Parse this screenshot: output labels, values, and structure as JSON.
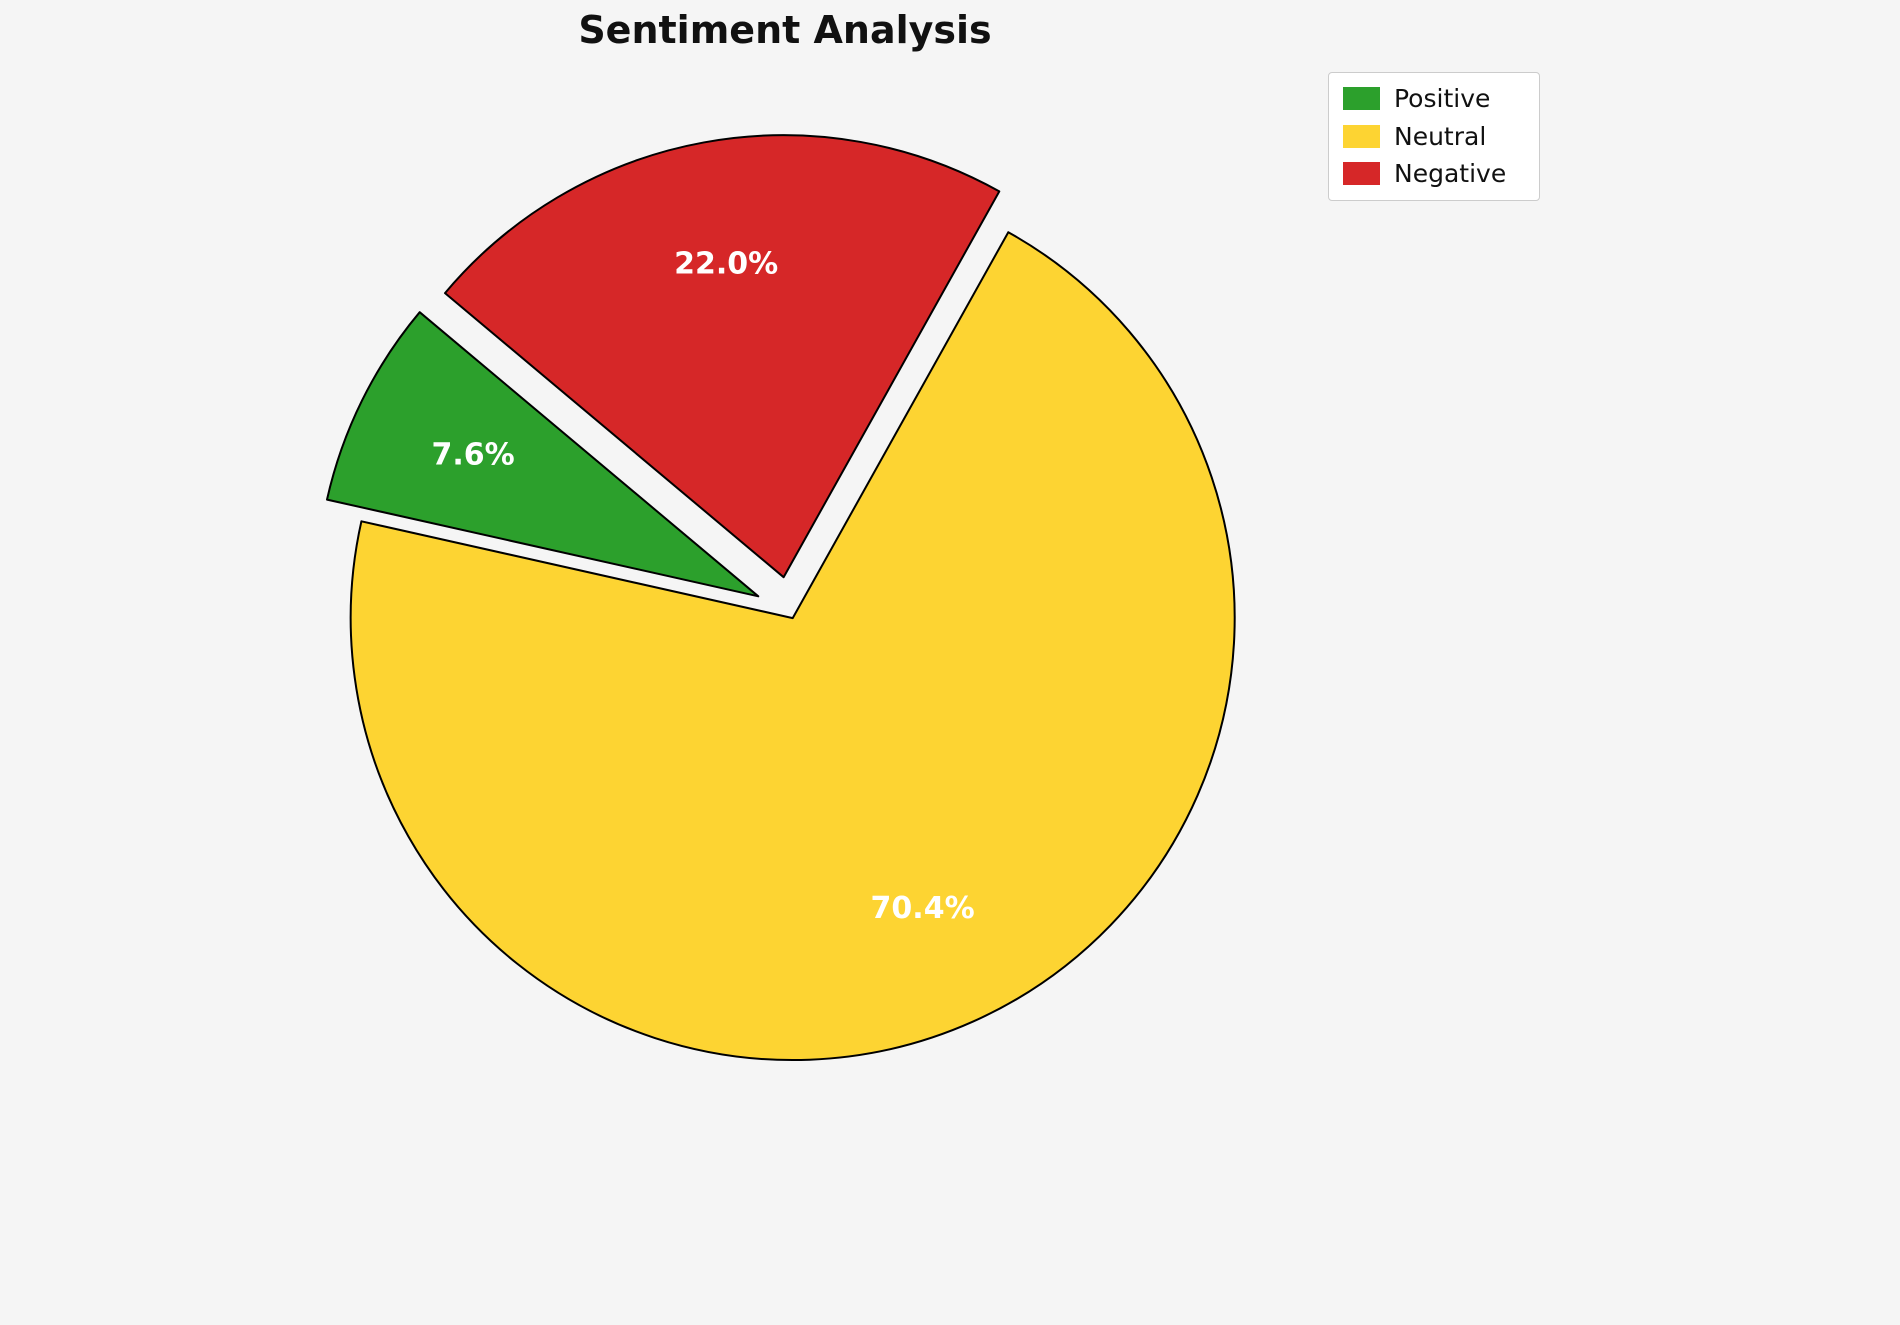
{
  "title": "Sentiment Analysis",
  "background_color": "#f5f5f5",
  "chart_data": {
    "type": "pie",
    "title": "Sentiment Analysis",
    "labels": [
      "Positive",
      "Neutral",
      "Negative"
    ],
    "values": [
      7.6,
      70.4,
      22.0
    ],
    "pct_labels": [
      "7.6%",
      "70.4%",
      "22.0%"
    ],
    "colors": [
      "#2ca02c",
      "#fdd432",
      "#d62728"
    ],
    "edge_color": "#000000",
    "edge_width": 2,
    "label_color": "#ffffff",
    "start_angle": 140,
    "counterclockwise": true,
    "explode": [
      0.08,
      0.015,
      0.08
    ],
    "pctdistance": 0.72,
    "center": [
      790,
      612
    ],
    "radius": 442,
    "legend_position": "upper right",
    "grid": false
  },
  "legend": {
    "items": [
      {
        "label": "Positive",
        "color": "#2ca02c"
      },
      {
        "label": "Neutral",
        "color": "#fdd432"
      },
      {
        "label": "Negative",
        "color": "#d62728"
      }
    ]
  }
}
